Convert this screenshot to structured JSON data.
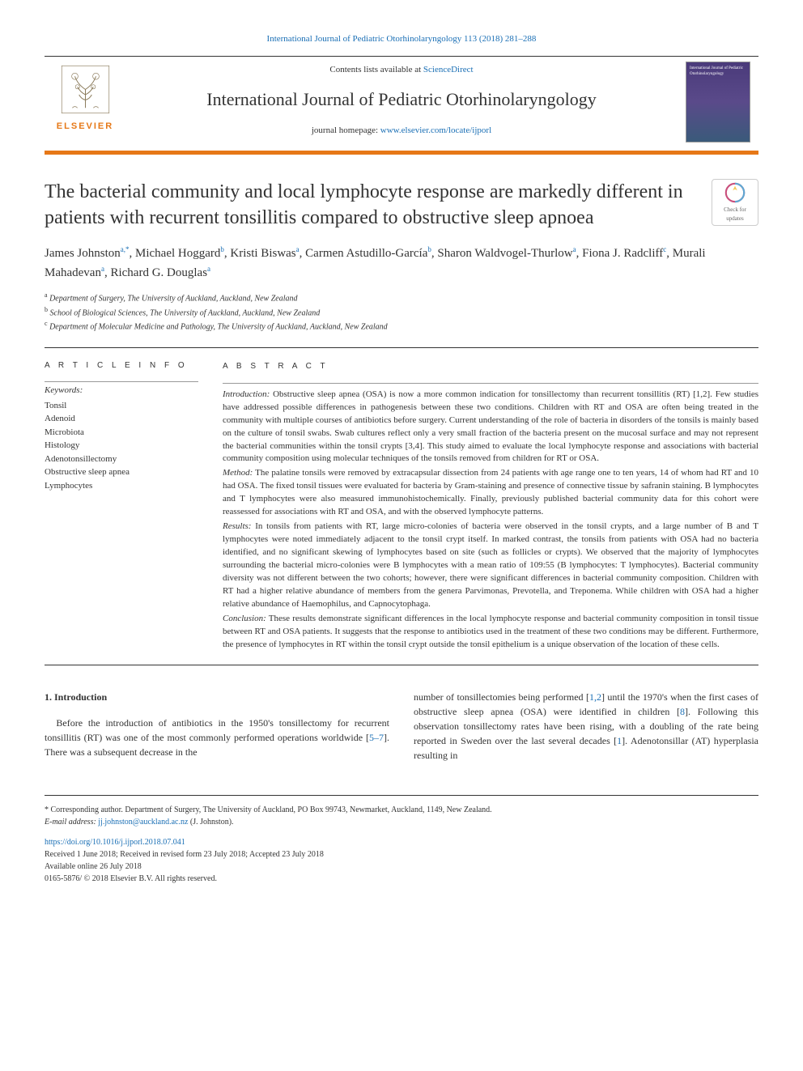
{
  "header": {
    "citation": "International Journal of Pediatric Otorhinolaryngology 113 (2018) 281–288",
    "contents_prefix": "Contents lists available at ",
    "contents_link": "ScienceDirect",
    "journal_name": "International Journal of Pediatric Otorhinolaryngology",
    "homepage_prefix": "journal homepage: ",
    "homepage_link": "www.elsevier.com/locate/ijporl",
    "publisher": "ELSEVIER",
    "cover_text": "International Journal of Pediatric Otorhinolaryngology"
  },
  "updates_badge": {
    "line1": "Check for",
    "line2": "updates"
  },
  "title": "The bacterial community and local lymphocyte response are markedly different in patients with recurrent tonsillitis compared to obstructive sleep apnoea",
  "authors_html": "James Johnston<sup>a,*</sup>, Michael Hoggard<sup>b</sup>, Kristi Biswas<sup>a</sup>, Carmen Astudillo-García<sup>b</sup>, Sharon Waldvogel-Thurlow<sup>a</sup>, Fiona J. Radcliff<sup>c</sup>, Murali Mahadevan<sup>a</sup>, Richard G. Douglas<sup>a</sup>",
  "affiliations": [
    {
      "sup": "a",
      "text": "Department of Surgery, The University of Auckland, Auckland, New Zealand"
    },
    {
      "sup": "b",
      "text": "School of Biological Sciences, The University of Auckland, Auckland, New Zealand"
    },
    {
      "sup": "c",
      "text": "Department of Molecular Medicine and Pathology, The University of Auckland, Auckland, New Zealand"
    }
  ],
  "article_info": {
    "heading": "A R T I C L E  I N F O",
    "keywords_label": "Keywords:",
    "keywords": [
      "Tonsil",
      "Adenoid",
      "Microbiota",
      "Histology",
      "Adenotonsillectomy",
      "Obstructive sleep apnea",
      "Lymphocytes"
    ]
  },
  "abstract": {
    "heading": "A B S T R A C T",
    "sections": [
      {
        "label": "Introduction:",
        "text": "Obstructive sleep apnea (OSA) is now a more common indication for tonsillectomy than recurrent tonsillitis (RT) [1,2]. Few studies have addressed possible differences in pathogenesis between these two conditions. Children with RT and OSA are often being treated in the community with multiple courses of antibiotics before surgery. Current understanding of the role of bacteria in disorders of the tonsils is mainly based on the culture of tonsil swabs. Swab cultures reflect only a very small fraction of the bacteria present on the mucosal surface and may not represent the bacterial communities within the tonsil crypts [3,4]. This study aimed to evaluate the local lymphocyte response and associations with bacterial community composition using molecular techniques of the tonsils removed from children for RT or OSA."
      },
      {
        "label": "Method:",
        "text": "The palatine tonsils were removed by extracapsular dissection from 24 patients with age range one to ten years, 14 of whom had RT and 10 had OSA. The fixed tonsil tissues were evaluated for bacteria by Gram-staining and presence of connective tissue by safranin staining. B lymphocytes and T lymphocytes were also measured immunohistochemically. Finally, previously published bacterial community data for this cohort were reassessed for associations with RT and OSA, and with the observed lymphocyte patterns."
      },
      {
        "label": "Results:",
        "text": "In tonsils from patients with RT, large micro-colonies of bacteria were observed in the tonsil crypts, and a large number of B and T lymphocytes were noted immediately adjacent to the tonsil crypt itself. In marked contrast, the tonsils from patients with OSA had no bacteria identified, and no significant skewing of lymphocytes based on site (such as follicles or crypts). We observed that the majority of lymphocytes surrounding the bacterial micro-colonies were B lymphocytes with a mean ratio of 109:55 (B lymphocytes: T lymphocytes). Bacterial community diversity was not different between the two cohorts; however, there were significant differences in bacterial community composition. Children with RT had a higher relative abundance of members from the genera Parvimonas, Prevotella, and Treponema. While children with OSA had a higher relative abundance of Haemophilus, and Capnocytophaga."
      },
      {
        "label": "Conclusion:",
        "text": "These results demonstrate significant differences in the local lymphocyte response and bacterial community composition in tonsil tissue between RT and OSA patients. It suggests that the response to antibiotics used in the treatment of these two conditions may be different. Furthermore, the presence of lymphocytes in RT within the tonsil crypt outside the tonsil epithelium is a unique observation of the location of these cells."
      }
    ]
  },
  "body": {
    "heading": "1. Introduction",
    "col1": "Before the introduction of antibiotics in the 1950's tonsillectomy for recurrent tonsillitis (RT) was one of the most commonly performed operations worldwide [5–7]. There was a subsequent decrease in the",
    "col2": "number of tonsillectomies being performed [1,2] until the 1970's when the first cases of obstructive sleep apnea (OSA) were identified in children [8]. Following this observation tonsillectomy rates have been rising, with a doubling of the rate being reported in Sweden over the last several decades [1]. Adenotonsillar (AT) hyperplasia resulting in",
    "refs": {
      "r5_7": "5–7",
      "r1_2": "1,2",
      "r8": "8",
      "r1": "1"
    }
  },
  "footer": {
    "corr_label": "* Corresponding author. Department of Surgery, The University of Auckland, PO Box 99743, Newmarket, Auckland, 1149, New Zealand.",
    "email_label": "E-mail address:",
    "email": "jj.johnston@auckland.ac.nz",
    "email_suffix": "(J. Johnston).",
    "doi": "https://doi.org/10.1016/j.ijporl.2018.07.041",
    "received": "Received 1 June 2018; Received in revised form 23 July 2018; Accepted 23 July 2018",
    "available": "Available online 26 July 2018",
    "copyright": "0165-5876/ © 2018 Elsevier B.V. All rights reserved."
  },
  "colors": {
    "link": "#1a6fb5",
    "orange": "#e67817",
    "text": "#333333",
    "rule": "#333333"
  }
}
